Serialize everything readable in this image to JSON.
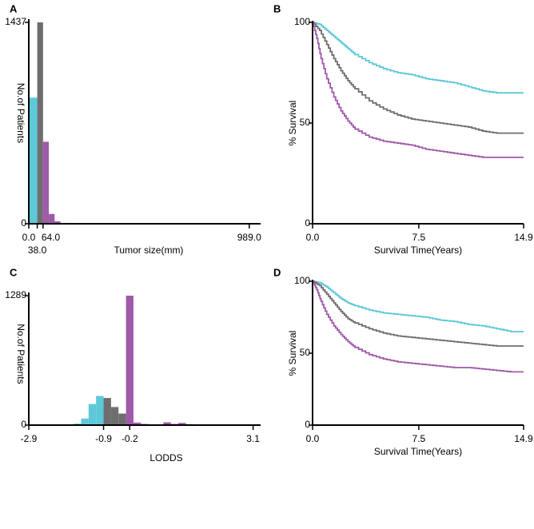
{
  "colors": {
    "cyan": "#5cc8d8",
    "grey": "#6e6e6e",
    "purple": "#a05aaa"
  },
  "chart_data": [
    {
      "id": "A",
      "type": "bar",
      "panel_label": "A",
      "xlabel": "Tumor size(mm)",
      "ylabel": "No.of Patients",
      "ylim": [
        0,
        1437
      ],
      "yticks": [
        "0",
        "1437"
      ],
      "xticks": [
        {
          "label": "0.0",
          "value": 0
        },
        {
          "label": "38.0",
          "value": 38
        },
        {
          "label": "64.0",
          "value": 64
        },
        {
          "label": "989.0",
          "value": 989
        }
      ],
      "xlim": [
        0,
        1040
      ],
      "bins": [
        {
          "start": 0,
          "end": 38,
          "value": 900,
          "group": "cyan"
        },
        {
          "start": 38,
          "end": 64,
          "value": 1437,
          "group": "grey"
        },
        {
          "start": 64,
          "end": 90,
          "value": 585,
          "group": "purple"
        },
        {
          "start": 90,
          "end": 116,
          "value": 70,
          "group": "purple"
        },
        {
          "start": 116,
          "end": 142,
          "value": 18,
          "group": "purple"
        },
        {
          "start": 142,
          "end": 168,
          "value": 6,
          "group": "purple"
        }
      ]
    },
    {
      "id": "B",
      "type": "line",
      "panel_label": "B",
      "xlabel": "Survival Time(Years)",
      "ylabel": "% Survival",
      "xlim": [
        0,
        14.9
      ],
      "ylim": [
        0,
        100
      ],
      "xticks": [
        "0.0",
        "7.5",
        "14.9"
      ],
      "yticks": [
        "0",
        "50",
        "100"
      ],
      "series": [
        {
          "name": "cyan",
          "x": [
            0,
            0.5,
            1,
            1.5,
            2,
            2.5,
            3,
            4,
            5,
            6,
            7,
            8,
            9,
            10,
            11,
            12,
            13,
            14,
            14.9
          ],
          "y": [
            100,
            99,
            96,
            93,
            90,
            87,
            84,
            80,
            77,
            75,
            74,
            72,
            71,
            70,
            68,
            66,
            65,
            65,
            65
          ]
        },
        {
          "name": "grey",
          "x": [
            0,
            0.5,
            1,
            1.5,
            2,
            2.5,
            3,
            4,
            5,
            6,
            7,
            8,
            9,
            10,
            11,
            12,
            13,
            14,
            14.9
          ],
          "y": [
            100,
            96,
            89,
            82,
            76,
            71,
            67,
            61,
            57,
            54,
            52,
            51,
            50,
            49,
            48,
            46,
            45,
            45,
            45
          ]
        },
        {
          "name": "purple",
          "x": [
            0,
            0.3,
            0.6,
            1,
            1.5,
            2,
            2.5,
            3,
            4,
            5,
            6,
            7,
            8,
            9,
            10,
            11,
            12,
            13,
            14,
            14.9
          ],
          "y": [
            100,
            92,
            82,
            72,
            63,
            56,
            51,
            47,
            43,
            41,
            40,
            39,
            37,
            36,
            35,
            34,
            33,
            33,
            33,
            33
          ]
        }
      ]
    },
    {
      "id": "C",
      "type": "bar",
      "panel_label": "C",
      "xlabel": "LODDS",
      "ylabel": "No.of Patients",
      "ylim": [
        0,
        1289
      ],
      "yticks": [
        "0",
        "1289"
      ],
      "xticks": [
        {
          "label": "-2.9",
          "value": -2.9
        },
        {
          "label": "-0.9",
          "value": -0.9
        },
        {
          "label": "-0.2",
          "value": -0.2
        },
        {
          "label": "3.1",
          "value": 3.1
        }
      ],
      "xlim": [
        -2.9,
        3.3
      ],
      "bins": [
        {
          "start": -2.7,
          "end": -2.5,
          "value": 8,
          "group": "cyan"
        },
        {
          "start": -2.5,
          "end": -2.3,
          "value": 4,
          "group": "cyan"
        },
        {
          "start": -1.7,
          "end": -1.5,
          "value": 15,
          "group": "cyan"
        },
        {
          "start": -1.5,
          "end": -1.3,
          "value": 65,
          "group": "cyan"
        },
        {
          "start": -1.3,
          "end": -1.1,
          "value": 210,
          "group": "cyan"
        },
        {
          "start": -1.1,
          "end": -0.9,
          "value": 290,
          "group": "cyan"
        },
        {
          "start": -0.9,
          "end": -0.7,
          "value": 270,
          "group": "grey"
        },
        {
          "start": -0.7,
          "end": -0.5,
          "value": 180,
          "group": "grey"
        },
        {
          "start": -0.5,
          "end": -0.3,
          "value": 115,
          "group": "grey"
        },
        {
          "start": -0.3,
          "end": -0.1,
          "value": 1289,
          "group": "purple"
        },
        {
          "start": -0.1,
          "end": 0.1,
          "value": 25,
          "group": "purple"
        },
        {
          "start": 0.1,
          "end": 0.3,
          "value": 12,
          "group": "purple"
        },
        {
          "start": 0.3,
          "end": 0.5,
          "value": 8,
          "group": "purple"
        },
        {
          "start": 0.7,
          "end": 0.9,
          "value": 28,
          "group": "purple"
        },
        {
          "start": 0.9,
          "end": 1.1,
          "value": 12,
          "group": "purple"
        },
        {
          "start": 1.1,
          "end": 1.3,
          "value": 22,
          "group": "purple"
        },
        {
          "start": 1.3,
          "end": 1.5,
          "value": 10,
          "group": "purple"
        },
        {
          "start": 1.5,
          "end": 1.7,
          "value": 4,
          "group": "purple"
        },
        {
          "start": 1.9,
          "end": 2.1,
          "value": 3,
          "group": "purple"
        }
      ]
    },
    {
      "id": "D",
      "type": "line",
      "panel_label": "D",
      "xlabel": "Survival Time(Years)",
      "ylabel": "% Survival",
      "xlim": [
        0,
        14.9
      ],
      "ylim": [
        0,
        100
      ],
      "xticks": [
        "0.0",
        "7.5",
        "14.9"
      ],
      "yticks": [
        "0",
        "50",
        "100"
      ],
      "series": [
        {
          "name": "cyan",
          "x": [
            0,
            0.5,
            1,
            1.5,
            2,
            2.5,
            3,
            4,
            5,
            6,
            7,
            8,
            9,
            10,
            11,
            12,
            13,
            14,
            14.9
          ],
          "y": [
            100,
            99,
            96,
            92,
            88,
            85,
            83,
            80,
            78,
            77,
            76,
            75,
            73,
            72,
            70,
            69,
            67,
            65,
            65
          ]
        },
        {
          "name": "grey",
          "x": [
            0,
            0.5,
            1,
            1.5,
            2,
            2.5,
            3,
            4,
            5,
            6,
            7,
            8,
            9,
            10,
            11,
            12,
            13,
            14,
            14.9
          ],
          "y": [
            100,
            97,
            91,
            85,
            79,
            74,
            71,
            67,
            64,
            62,
            61,
            60,
            59,
            58,
            57,
            56,
            55,
            55,
            55
          ]
        },
        {
          "name": "purple",
          "x": [
            0,
            0.3,
            0.6,
            1,
            1.5,
            2,
            2.5,
            3,
            4,
            5,
            6,
            7,
            8,
            9,
            10,
            11,
            12,
            13,
            14,
            14.9
          ],
          "y": [
            100,
            94,
            86,
            77,
            69,
            63,
            58,
            54,
            49,
            46,
            44,
            43,
            42,
            41,
            40,
            40,
            39,
            38,
            37,
            37
          ]
        }
      ]
    }
  ]
}
